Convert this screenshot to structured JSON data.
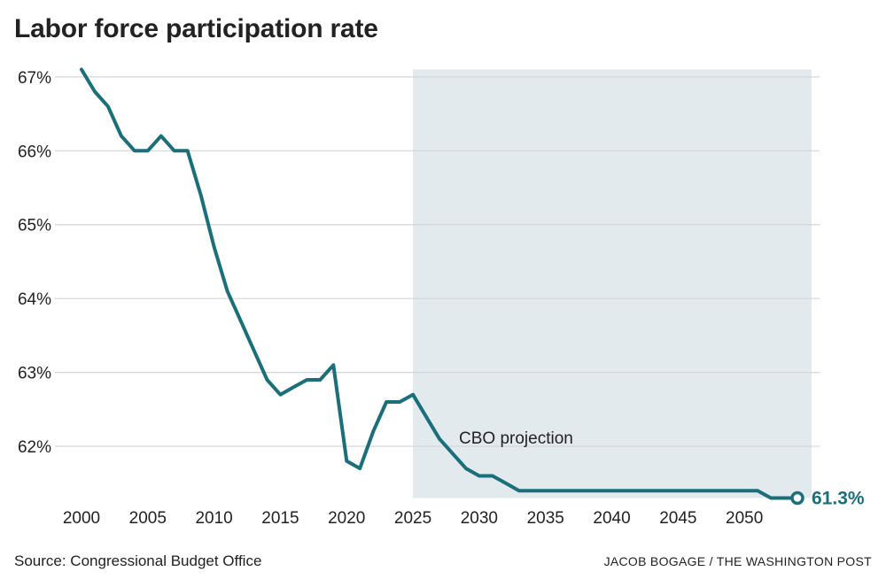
{
  "chart_data": {
    "type": "line",
    "title": "Labor force participation rate",
    "xlabel": "",
    "ylabel": "",
    "xlim": [
      2000,
      2054
    ],
    "ylim": [
      61.3,
      67.1
    ],
    "x_ticks": [
      2000,
      2005,
      2010,
      2015,
      2020,
      2025,
      2030,
      2035,
      2040,
      2045,
      2050
    ],
    "y_ticks": [
      62,
      63,
      64,
      65,
      66,
      67
    ],
    "y_tick_labels": [
      "62%",
      "63%",
      "64%",
      "65%",
      "66%",
      "67%"
    ],
    "grid": true,
    "series": [
      {
        "name": "Labor force participation rate",
        "x": [
          2000,
          2001,
          2002,
          2003,
          2004,
          2005,
          2006,
          2007,
          2008,
          2009,
          2010,
          2011,
          2012,
          2013,
          2014,
          2015,
          2016,
          2017,
          2018,
          2019,
          2020,
          2021,
          2022,
          2023,
          2024,
          2025,
          2026,
          2027,
          2028,
          2029,
          2030,
          2031,
          2032,
          2033,
          2034,
          2035,
          2036,
          2037,
          2038,
          2039,
          2040,
          2041,
          2042,
          2043,
          2044,
          2045,
          2046,
          2047,
          2048,
          2049,
          2050,
          2051,
          2052,
          2053,
          2054
        ],
        "values": [
          67.1,
          66.8,
          66.6,
          66.2,
          66.0,
          66.0,
          66.2,
          66.0,
          66.0,
          65.4,
          64.7,
          64.1,
          63.7,
          63.3,
          62.9,
          62.7,
          62.8,
          62.9,
          62.9,
          63.1,
          61.8,
          61.7,
          62.2,
          62.6,
          62.6,
          62.7,
          62.4,
          62.1,
          61.9,
          61.7,
          61.6,
          61.6,
          61.5,
          61.4,
          61.4,
          61.4,
          61.4,
          61.4,
          61.4,
          61.4,
          61.4,
          61.4,
          61.4,
          61.4,
          61.4,
          61.4,
          61.4,
          61.4,
          61.4,
          61.4,
          61.4,
          61.4,
          61.3,
          61.3,
          61.3
        ]
      }
    ],
    "shaded_region": {
      "x_start": 2025,
      "x_end": 2054,
      "label": "CBO projection"
    },
    "end_label": "61.3%",
    "colors": {
      "line": "#1a6f7b",
      "shade": "#e3eaed",
      "grid": "#d5d5d5"
    }
  },
  "footer": {
    "source": "Source: Congressional Budget Office",
    "credit": "JACOB BOGAGE / THE WASHINGTON POST"
  }
}
